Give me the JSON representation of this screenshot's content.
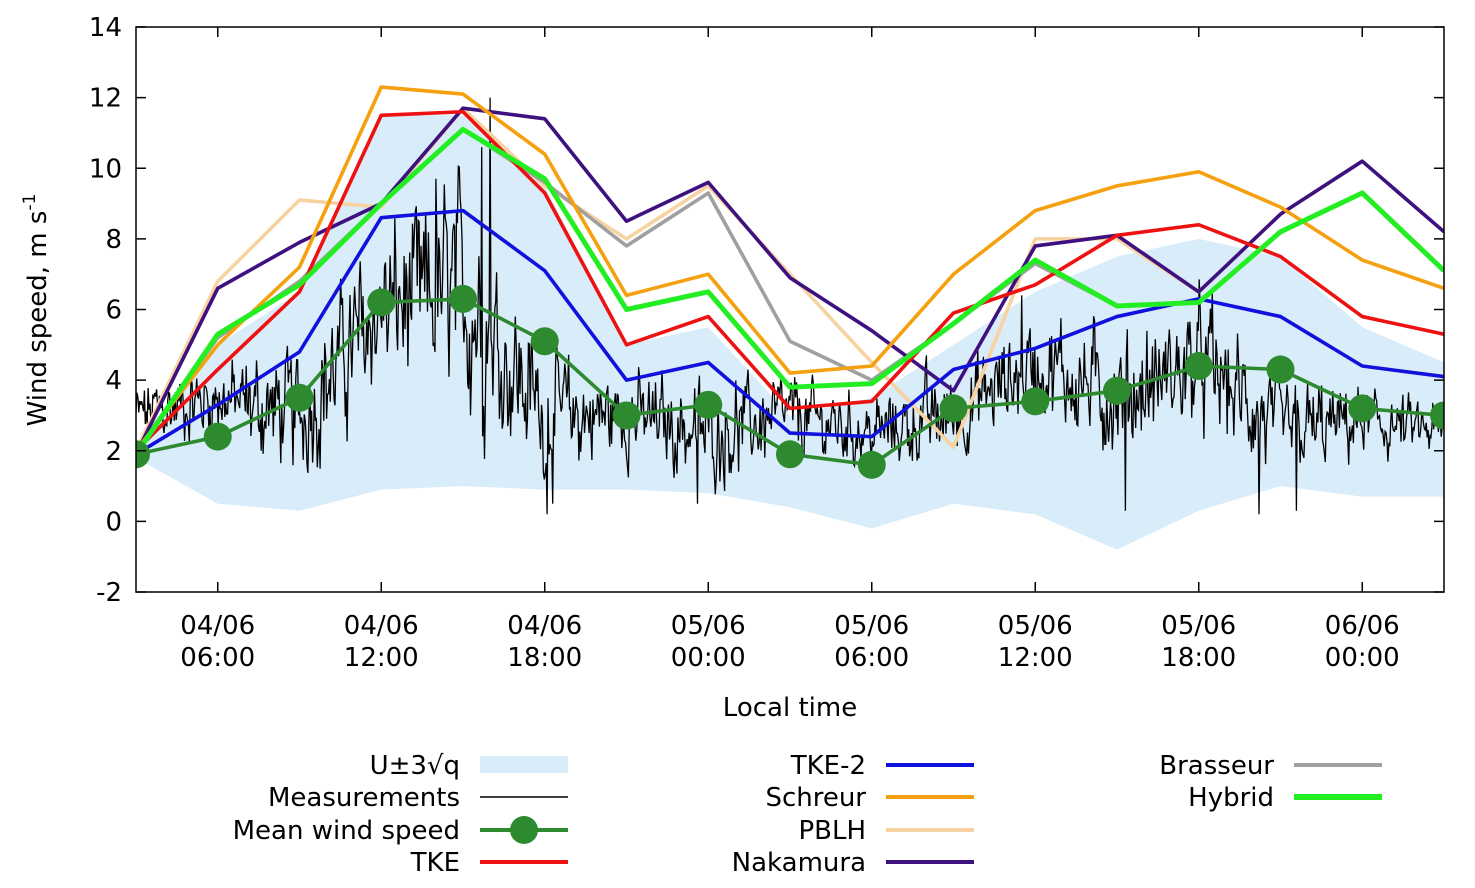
{
  "chart_data": {
    "type": "line",
    "title": "",
    "xlabel": "Local time",
    "ylabel": "Wind speed, m s",
    "ylabel_sup": "-1",
    "x_unit": "hours since 04/06 03:00",
    "xlim": [
      0,
      48
    ],
    "ylim": [
      -2,
      14
    ],
    "yticks": [
      -2,
      0,
      2,
      4,
      6,
      8,
      10,
      12,
      14
    ],
    "xticks": [
      {
        "x": 3,
        "date": "04/06",
        "time": "06:00"
      },
      {
        "x": 9,
        "date": "04/06",
        "time": "12:00"
      },
      {
        "x": 15,
        "date": "04/06",
        "time": "18:00"
      },
      {
        "x": 21,
        "date": "05/06",
        "time": "00:00"
      },
      {
        "x": 27,
        "date": "05/06",
        "time": "06:00"
      },
      {
        "x": 33,
        "date": "05/06",
        "time": "12:00"
      },
      {
        "x": 39,
        "date": "05/06",
        "time": "18:00"
      },
      {
        "x": 45,
        "date": "06/06",
        "time": "00:00"
      }
    ],
    "x": [
      0,
      3,
      6,
      9,
      12,
      15,
      18,
      21,
      24,
      27,
      30,
      33,
      36,
      39,
      42,
      45,
      48
    ],
    "band": {
      "name": "U±3√q",
      "color": "#d9ecfa",
      "upper": [
        2.0,
        5.0,
        6.5,
        11.5,
        11.5,
        9.5,
        5.0,
        5.5,
        3.0,
        3.5,
        5.0,
        6.5,
        7.5,
        8.0,
        7.5,
        5.5,
        4.5
      ],
      "lower": [
        1.8,
        0.5,
        0.3,
        0.9,
        1.0,
        0.9,
        0.9,
        0.8,
        0.4,
        -0.2,
        0.5,
        0.2,
        -0.8,
        0.3,
        1.0,
        0.7,
        0.7
      ]
    },
    "measurements": {
      "name": "Measurements",
      "color": "#000000",
      "envelope": [
        3.0,
        3.5,
        3.0,
        6.0,
        6.5,
        3.0,
        3.0,
        2.5,
        3.0,
        2.5,
        3.0,
        4.5,
        3.5,
        4.5,
        2.5,
        2.8,
        2.5
      ],
      "noise": [
        0.8,
        0.9,
        1.5,
        1.8,
        2.5,
        1.5,
        1.0,
        1.2,
        0.9,
        0.8,
        1.0,
        1.2,
        1.4,
        1.4,
        1.2,
        0.8,
        0.7
      ],
      "extremes": [
        {
          "x": 13.0,
          "y": 12.0
        },
        {
          "x": 12.7,
          "y": 10.6
        },
        {
          "x": 11.0,
          "y": 9.7
        },
        {
          "x": 15.1,
          "y": 0.2
        },
        {
          "x": 20.6,
          "y": 0.5
        },
        {
          "x": 36.3,
          "y": 0.3
        },
        {
          "x": 41.2,
          "y": 0.2
        },
        {
          "x": 42.6,
          "y": 0.3
        },
        {
          "x": 29.0,
          "y": 4.7
        },
        {
          "x": 32.5,
          "y": 6.4
        },
        {
          "x": 39.5,
          "y": 6.5
        }
      ]
    },
    "series": [
      {
        "name": "Mean wind speed",
        "color": "#2e8a2e",
        "markers": true,
        "values": [
          1.9,
          2.4,
          3.5,
          6.2,
          6.3,
          5.1,
          3.0,
          3.3,
          1.9,
          1.6,
          3.2,
          3.4,
          3.7,
          4.4,
          4.3,
          3.2,
          3.0
        ]
      },
      {
        "name": "TKE",
        "color": "#ee1111",
        "values": [
          2.0,
          4.3,
          6.5,
          11.5,
          11.6,
          9.3,
          5.0,
          5.8,
          3.2,
          3.4,
          5.9,
          6.7,
          8.1,
          8.4,
          7.5,
          5.8,
          5.3
        ]
      },
      {
        "name": "TKE-2",
        "color": "#1111dd",
        "values": [
          1.9,
          3.3,
          4.8,
          8.6,
          8.8,
          7.1,
          4.0,
          4.5,
          2.5,
          2.4,
          4.3,
          4.9,
          5.8,
          6.3,
          5.8,
          4.4,
          4.1
        ]
      },
      {
        "name": "Schreur",
        "color": "#f4a00f",
        "values": [
          2.0,
          5.0,
          7.2,
          12.3,
          12.1,
          10.4,
          6.4,
          7.0,
          4.2,
          4.4,
          7.0,
          8.8,
          9.5,
          9.9,
          8.9,
          7.4,
          6.6
        ]
      },
      {
        "name": "PBLH",
        "color": "#f6d3a0",
        "values": [
          2.0,
          6.8,
          9.1,
          8.9,
          11.7,
          9.5,
          8.0,
          9.5,
          7.0,
          4.5,
          2.1,
          8.0,
          8.0,
          6.5,
          8.7,
          10.2,
          8.2
        ]
      },
      {
        "name": "Nakamura",
        "color": "#3e1180",
        "values": [
          1.9,
          6.6,
          7.9,
          9.0,
          11.7,
          11.4,
          8.5,
          9.6,
          6.9,
          5.4,
          3.7,
          7.8,
          8.1,
          6.5,
          8.7,
          10.2,
          8.2
        ]
      },
      {
        "name": "Brasseur",
        "color": "#a0a0a0",
        "values": [
          2.0,
          5.2,
          6.8,
          9.0,
          11.1,
          9.6,
          7.8,
          9.3,
          5.1,
          4.0,
          5.6,
          7.3,
          6.1,
          6.2,
          8.2,
          9.3,
          7.1
        ]
      },
      {
        "name": "Hybrid",
        "color": "#22ee22",
        "values": [
          1.9,
          5.3,
          6.7,
          9.0,
          11.1,
          9.7,
          6.0,
          6.5,
          3.8,
          3.9,
          5.6,
          7.4,
          6.1,
          6.2,
          8.2,
          9.3,
          7.1
        ]
      }
    ],
    "draw_order": [
      "PBLH",
      "Brasseur",
      "Nakamura",
      "Schreur",
      "TKE",
      "TKE-2",
      "Hybrid"
    ],
    "legend": {
      "placement": "bottom",
      "columns": [
        [
          "U±3√q",
          "Measurements",
          "Mean wind speed",
          "TKE"
        ],
        [
          "TKE-2",
          "Schreur",
          "PBLH",
          "Nakamura"
        ],
        [
          "Brasseur",
          "Hybrid"
        ]
      ]
    }
  }
}
